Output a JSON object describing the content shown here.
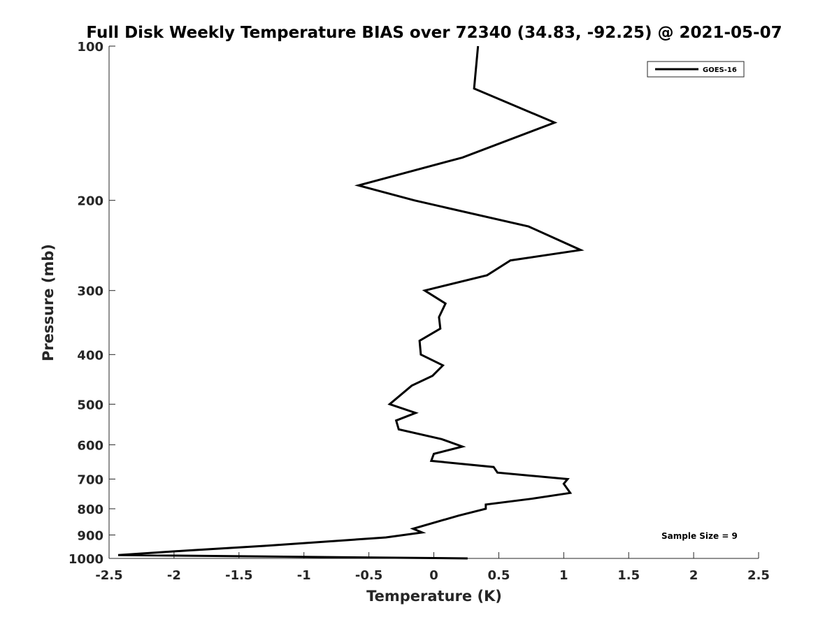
{
  "chart_data": {
    "type": "line",
    "title": "Full Disk Weekly Temperature BIAS over 72340 (34.83, -92.25) @ 2021-05-07",
    "xlabel": "Temperature (K)",
    "ylabel": "Pressure (mb)",
    "xlim": [
      -2.5,
      2.5
    ],
    "ylim": [
      100,
      1000
    ],
    "y_scale": "log",
    "y_reversed": true,
    "x_ticks": [
      "-2.5",
      "-2",
      "-1.5",
      "-1",
      "-0.5",
      "0",
      "0.5",
      "1",
      "1.5",
      "2",
      "2.5"
    ],
    "y_ticks": [
      "100",
      "200",
      "300",
      "400",
      "500",
      "600",
      "700",
      "800",
      "900",
      "1000"
    ],
    "grid": false,
    "legend_position": "top-right",
    "annotation": "Sample Size = 9",
    "line_color": "#000000",
    "series": [
      {
        "name": "GOES-16",
        "points": [
          {
            "x": 0.34,
            "y": 100
          },
          {
            "x": 0.31,
            "y": 121
          },
          {
            "x": 0.93,
            "y": 141
          },
          {
            "x": 0.22,
            "y": 165
          },
          {
            "x": -0.58,
            "y": 187
          },
          {
            "x": -0.15,
            "y": 200
          },
          {
            "x": 0.73,
            "y": 225
          },
          {
            "x": 1.13,
            "y": 250
          },
          {
            "x": 0.59,
            "y": 262
          },
          {
            "x": 0.41,
            "y": 280
          },
          {
            "x": -0.07,
            "y": 300
          },
          {
            "x": 0.09,
            "y": 318
          },
          {
            "x": 0.04,
            "y": 338
          },
          {
            "x": 0.05,
            "y": 356
          },
          {
            "x": -0.11,
            "y": 376
          },
          {
            "x": -0.1,
            "y": 400
          },
          {
            "x": 0.07,
            "y": 420
          },
          {
            "x": -0.01,
            "y": 440
          },
          {
            "x": -0.17,
            "y": 460
          },
          {
            "x": -0.34,
            "y": 500
          },
          {
            "x": -0.14,
            "y": 520
          },
          {
            "x": -0.29,
            "y": 538
          },
          {
            "x": -0.27,
            "y": 560
          },
          {
            "x": 0.06,
            "y": 585
          },
          {
            "x": 0.22,
            "y": 605
          },
          {
            "x": 0.0,
            "y": 625
          },
          {
            "x": -0.02,
            "y": 645
          },
          {
            "x": 0.46,
            "y": 663
          },
          {
            "x": 0.49,
            "y": 680
          },
          {
            "x": 1.03,
            "y": 700
          },
          {
            "x": 1.0,
            "y": 715
          },
          {
            "x": 1.05,
            "y": 745
          },
          {
            "x": 0.75,
            "y": 765
          },
          {
            "x": 0.4,
            "y": 785
          },
          {
            "x": 0.4,
            "y": 800
          },
          {
            "x": 0.19,
            "y": 825
          },
          {
            "x": -0.16,
            "y": 875
          },
          {
            "x": -0.09,
            "y": 890
          },
          {
            "x": -0.37,
            "y": 910
          },
          {
            "x": -1.3,
            "y": 945
          },
          {
            "x": -1.9,
            "y": 965
          },
          {
            "x": -2.43,
            "y": 985
          },
          {
            "x": 0.26,
            "y": 1000
          }
        ]
      }
    ]
  }
}
